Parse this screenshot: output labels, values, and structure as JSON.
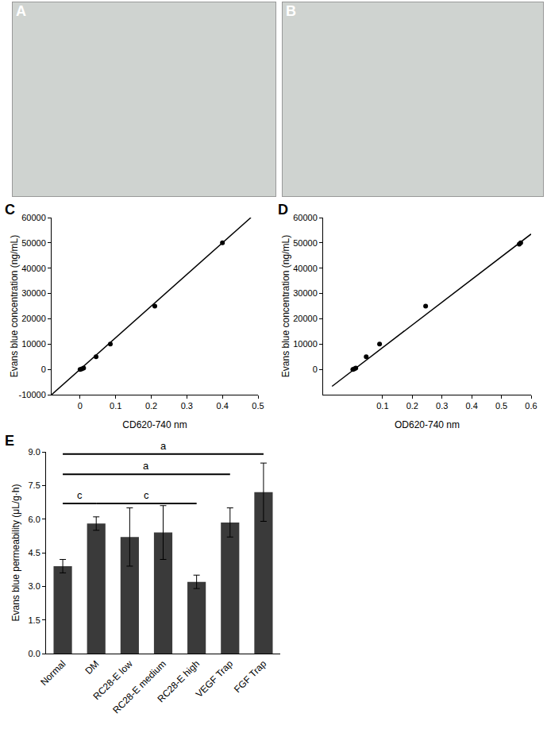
{
  "photo_panels": [
    "A",
    "B"
  ],
  "chart_data": [
    {
      "type": "scatter",
      "panel_label": "C",
      "x_label": "CD620-740 nm",
      "y_label": "Evans blue concentration (ng/mL)",
      "xlim": [
        -0.08,
        0.5
      ],
      "xticks": [
        0,
        0.1,
        0.2,
        0.3,
        0.4,
        0.5
      ],
      "ylim": [
        -10000,
        60000
      ],
      "yticks": [
        -10000,
        0,
        10000,
        20000,
        30000,
        40000,
        50000,
        60000
      ],
      "grid": false,
      "series": [
        {
          "type": "scatter",
          "marker": "circle",
          "color": "#000000",
          "x": [
            0,
            0.005,
            0.01,
            0.045,
            0.085,
            0.21,
            0.4
          ],
          "values": [
            0,
            200,
            500,
            5000,
            10000,
            25000,
            50000
          ]
        },
        {
          "type": "line",
          "line_style": "solid",
          "color": "#000000",
          "x": [
            -0.08,
            0.48
          ],
          "values": [
            -10000,
            60000
          ]
        }
      ]
    },
    {
      "type": "scatter",
      "panel_label": "D",
      "x_label": "OD620-740 nm",
      "y_label": "Evans blue concentration (ng/mL)",
      "xlim": [
        -0.1,
        0.6
      ],
      "xticks": [
        0.1,
        0.2,
        0.3,
        0.4,
        0.5,
        0.6
      ],
      "ylim": [
        -10000,
        60000
      ],
      "yticks": [
        0,
        10000,
        20000,
        30000,
        40000,
        50000,
        60000
      ],
      "grid": false,
      "series": [
        {
          "type": "scatter",
          "marker": "circle",
          "color": "#000000",
          "x": [
            0,
            0.005,
            0.01,
            0.045,
            0.09,
            0.245,
            0.56,
            0.565
          ],
          "values": [
            0,
            200,
            500,
            5000,
            10000,
            25000,
            49500,
            50000
          ]
        },
        {
          "type": "line",
          "line_style": "solid",
          "color": "#000000",
          "x": [
            -0.07,
            0.6
          ],
          "values": [
            -6700,
            53500
          ]
        }
      ]
    },
    {
      "type": "bar",
      "panel_label": "E",
      "y_label": "Evans blue permeability (μL/g·h)",
      "categories": [
        "Normal",
        "DM",
        "RC28-E low",
        "RC28-E medium",
        "RC28-E high",
        "VEGF Trap",
        "FGF Trap"
      ],
      "values": [
        3.9,
        5.8,
        5.2,
        5.4,
        3.2,
        5.85,
        7.2
      ],
      "errors": [
        0.3,
        0.3,
        1.3,
        1.2,
        0.3,
        0.65,
        1.3
      ],
      "color": "#3a3a3a",
      "ylim": [
        0,
        9
      ],
      "yticks": [
        {
          "value": 0,
          "label": "0.0"
        },
        1.5,
        {
          "value": 3,
          "label": "3.0"
        },
        4.5,
        {
          "value": 6,
          "label": "6.0"
        },
        7.5,
        {
          "value": 9,
          "label": "9.0"
        }
      ],
      "grid": false,
      "brackets": [
        {
          "from": "Normal",
          "to": "DM",
          "label": "c",
          "y": 6.7
        },
        {
          "from": "DM",
          "to": "RC28-E high",
          "label": "c",
          "y": 6.7
        },
        {
          "from": "Normal",
          "to": "VEGF Trap",
          "label": "a",
          "y": 8.0
        },
        {
          "from": "Normal",
          "to": "FGF Trap",
          "label": "a",
          "y": 8.9
        }
      ]
    }
  ]
}
